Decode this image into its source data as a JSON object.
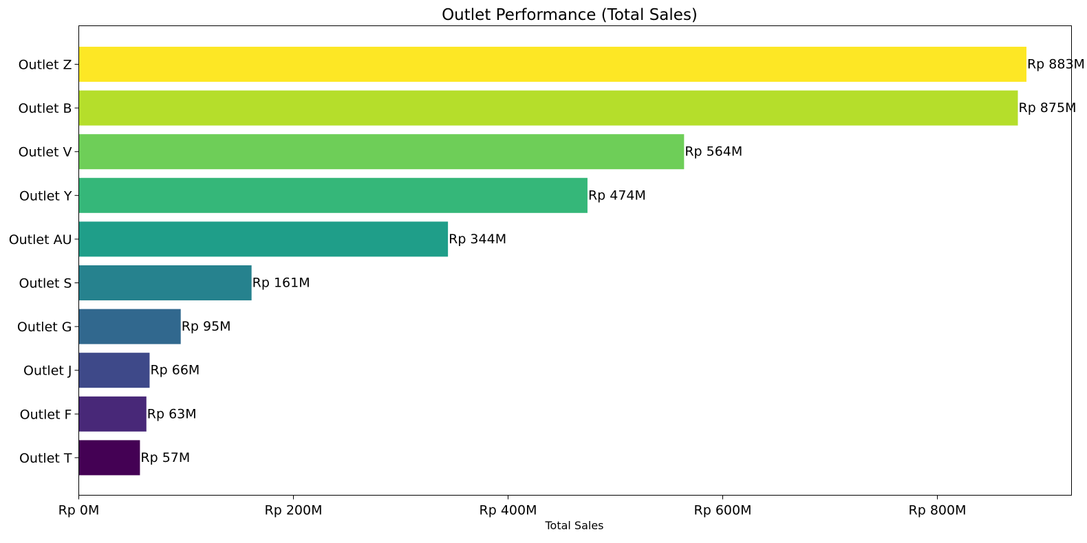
{
  "chart_data": {
    "type": "bar",
    "orientation": "horizontal",
    "title": "Outlet Performance (Total Sales)",
    "xlabel": "Total Sales",
    "ylabel": "",
    "xlim": [
      0,
      925
    ],
    "x_ticks": [
      0,
      200,
      400,
      600,
      800
    ],
    "x_tick_labels": [
      "Rp 0M",
      "Rp 200M",
      "Rp 400M",
      "Rp 600M",
      "Rp 800M"
    ],
    "grid": false,
    "legend": "none",
    "categories": [
      "Outlet Z",
      "Outlet B",
      "Outlet V",
      "Outlet Y",
      "Outlet AU",
      "Outlet S",
      "Outlet G",
      "Outlet J",
      "Outlet F",
      "Outlet T"
    ],
    "values": [
      883,
      875,
      564,
      474,
      344,
      161,
      95,
      66,
      63,
      57
    ],
    "value_labels": [
      "Rp 883M",
      "Rp 875M",
      "Rp 564M",
      "Rp 474M",
      "Rp 344M",
      "Rp 161M",
      "Rp 95M",
      "Rp 66M",
      "Rp 63M",
      "Rp 57M"
    ],
    "colors": [
      "#fde725",
      "#b5de2b",
      "#6ece58",
      "#35b779",
      "#1f9e89",
      "#26828e",
      "#31688e",
      "#3e4989",
      "#482878",
      "#440154"
    ]
  }
}
